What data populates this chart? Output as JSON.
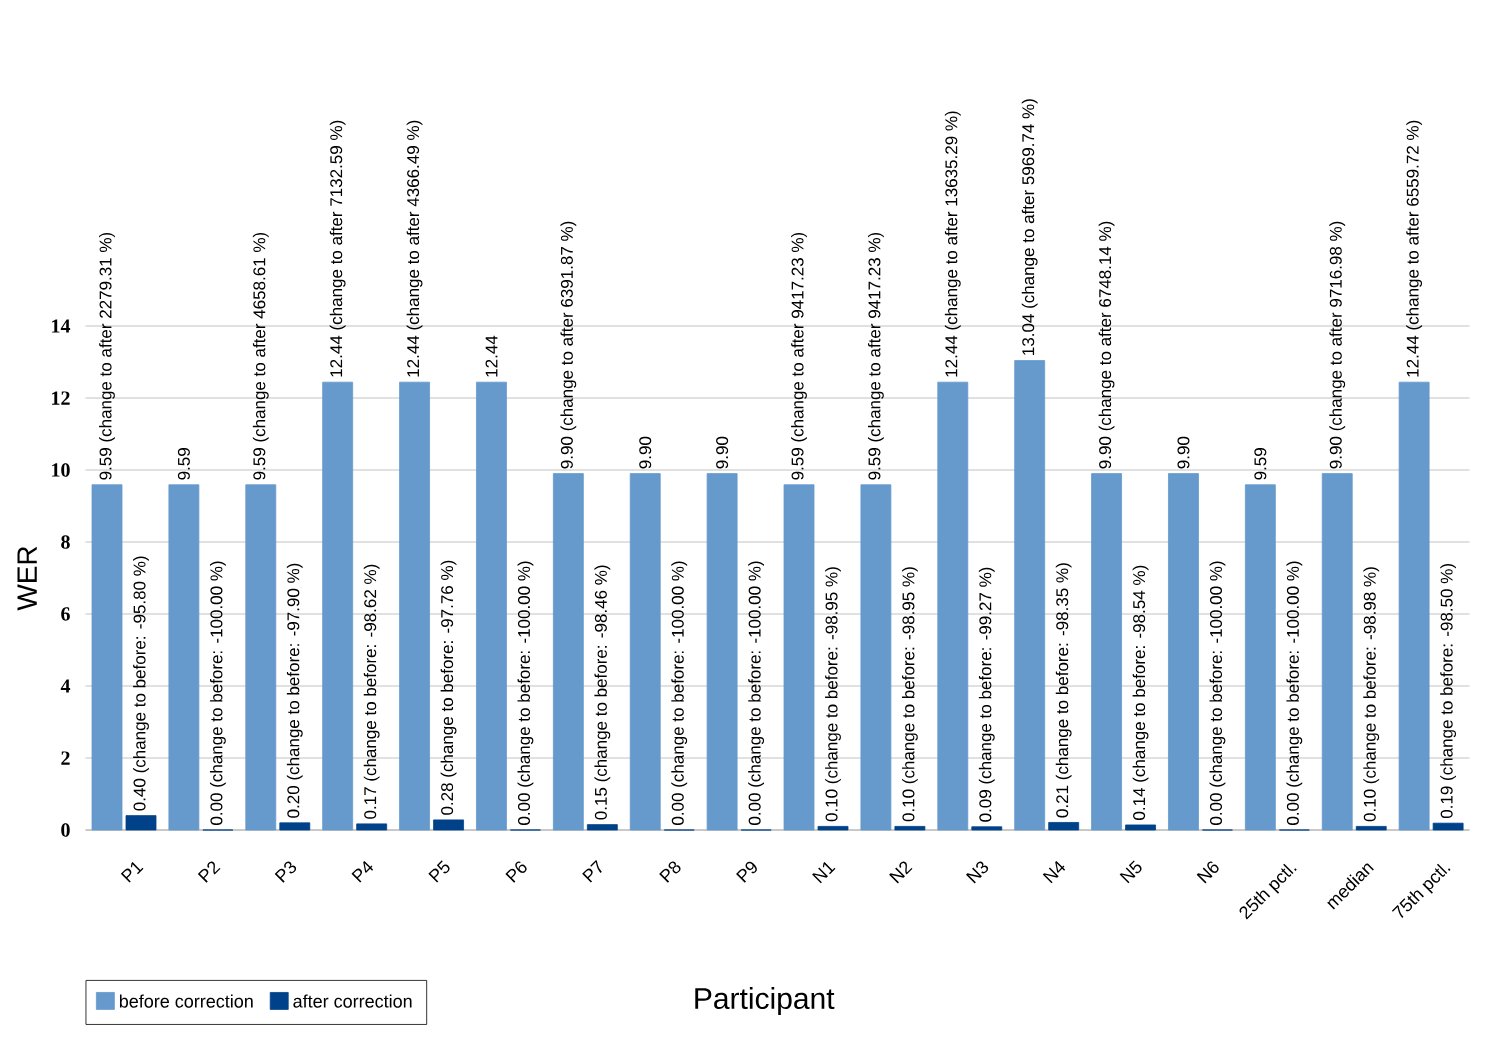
{
  "chart_data": {
    "type": "bar",
    "xlabel": "Participant",
    "ylabel": "WER",
    "ylim": [
      0,
      14
    ],
    "yticks": [
      0,
      2,
      4,
      6,
      8,
      10,
      12,
      14
    ],
    "grid": "y",
    "legend": "bottom left",
    "categories": [
      "P1",
      "P2",
      "P3",
      "P4",
      "P5",
      "P6",
      "P7",
      "P8",
      "P9",
      "N1",
      "N2",
      "N3",
      "N4",
      "N5",
      "N6",
      "25th pctl.",
      "median",
      "75th pctl."
    ],
    "series": [
      {
        "name": "before correction",
        "color": "#6699cc",
        "values": [
          9.59,
          9.59,
          9.59,
          12.44,
          12.44,
          12.44,
          9.9,
          9.9,
          9.9,
          9.59,
          9.59,
          12.44,
          13.04,
          9.9,
          9.9,
          9.59,
          9.9,
          12.44
        ],
        "value_labels": [
          "9.59 (change to after 2279.31 %)",
          "9.59",
          "9.59 (change to after 4658.61 %)",
          "12.44 (change to after 7132.59 %)",
          "12.44 (change to after 4366.49 %)",
          "12.44",
          "9.90 (change to after 6391.87 %)",
          "9.90",
          "9.90",
          "9.59 (change to after 9417.23 %)",
          "9.59 (change to after 9417.23 %)",
          "12.44 (change to after 13635.29 %)",
          "13.04 (change to after 5969.74 %)",
          "9.90 (change to after 6748.14 %)",
          "9.90",
          "9.59",
          "9.90 (change to after 9716.98 %)",
          "12.44 (change to after 6559.72 %)"
        ]
      },
      {
        "name": "after correction",
        "color": "#004289",
        "values": [
          0.4,
          0.0,
          0.2,
          0.17,
          0.28,
          0.0,
          0.15,
          0.0,
          0.0,
          0.1,
          0.1,
          0.09,
          0.21,
          0.14,
          0.0,
          0.0,
          0.1,
          0.19
        ],
        "value_labels": [
          "0.40 (change to before: -95.80 %)",
          "0.00 (change to before: -100.00 %)",
          "0.20 (change to before: -97.90 %)",
          "0.17 (change to before: -98.62 %)",
          "0.28 (change to before: -97.76 %)",
          "0.00 (change to before: -100.00 %)",
          "0.15 (change to before: -98.46 %)",
          "0.00 (change to before: -100.00 %)",
          "0.00 (change to before: -100.00 %)",
          "0.10 (change to before: -98.95 %)",
          "0.10 (change to before: -98.95 %)",
          "0.09 (change to before: -99.27 %)",
          "0.21 (change to before: -98.35 %)",
          "0.14 (change to before: -98.54 %)",
          "0.00 (change to before: -100.00 %)",
          "0.00 (change to before: -100.00 %)",
          "0.10 (change to before: -98.98 %)",
          "0.19 (change to before: -98.50 %)"
        ]
      }
    ]
  }
}
